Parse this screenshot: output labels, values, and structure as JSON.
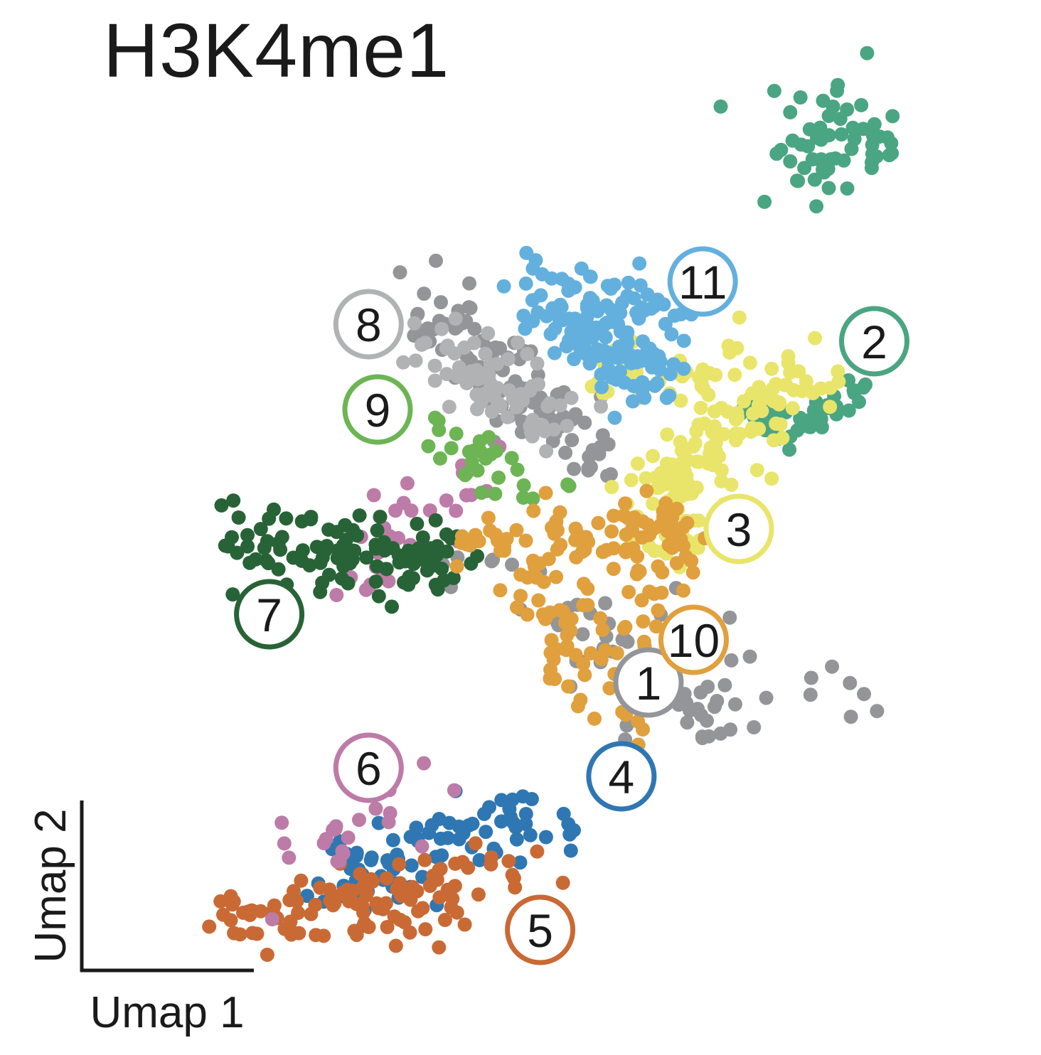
{
  "chart_data": {
    "type": "scatter",
    "title": "H3K4me1",
    "xlabel": "Umap 1",
    "ylabel": "Umap 2",
    "xlim": [
      0,
      100
    ],
    "ylim": [
      0,
      100
    ],
    "grid": false,
    "ticks": false,
    "series": [
      {
        "name": "1",
        "color": "#939598",
        "n": 170,
        "shape": [
          [
            34,
            80,
            55,
            60,
            15
          ],
          [
            71,
            30,
            52,
            40,
            5
          ],
          [
            84,
            33,
            35,
            50,
            4
          ]
        ],
        "label_at": [
          60,
          35
        ]
      },
      {
        "name": "2",
        "color": "#4aa582",
        "n": 120,
        "shape": [
          [
            70,
            67,
            114,
            73,
            35,
            95,
            4
          ],
          [
            80,
            98,
            6,
            5
          ]
        ],
        "label_at": [
          85,
          75
        ]
      },
      {
        "name": "3",
        "color": "#e8e56a",
        "n": 180,
        "shape": [
          [
            75,
            70,
            60,
            55,
            22
          ],
          [
            65,
            62,
            64,
            51,
            10
          ],
          [
            80,
            70,
            55,
            72,
            12
          ]
        ],
        "label_at": [
          70,
          53
        ]
      },
      {
        "name": "4",
        "color": "#2f77b2",
        "n": 90,
        "shape": [
          [
            46,
            20,
            25,
            10,
            10
          ],
          [
            52,
            18,
            26,
            12,
            5
          ]
        ],
        "label_at": [
          57,
          24
        ]
      },
      {
        "name": "5",
        "color": "#c96a35",
        "n": 110,
        "shape": [
          [
            38,
            10,
            14,
            7,
            12
          ],
          [
            47,
            14,
            18,
            6,
            7
          ]
        ],
        "label_at": [
          48,
          6
        ]
      },
      {
        "name": "6",
        "color": "#bd7ba7",
        "n": 55,
        "shape": [
          [
            40,
            58,
            25,
            45,
            20
          ],
          [
            37,
            22,
            17,
            12,
            10
          ]
        ],
        "label_at": [
          29,
          25
        ]
      },
      {
        "name": "7",
        "color": "#276336",
        "n": 110,
        "shape": [
          [
            15,
            52,
            39,
            49,
            15
          ]
        ],
        "label_at": [
          18,
          43
        ]
      },
      {
        "name": "8",
        "color": "#b0b2b3",
        "n": 70,
        "shape": [
          [
            35,
            75,
            50,
            64,
            15
          ]
        ],
        "label_at": [
          29,
          77
        ]
      },
      {
        "name": "9",
        "color": "#6db554",
        "n": 30,
        "shape": [
          [
            36,
            64,
            48,
            57,
            8
          ]
        ],
        "label_at": [
          30,
          67
        ]
      },
      {
        "name": "10",
        "color": "#e0a03d",
        "n": 170,
        "shape": [
          [
            40,
            51,
            64,
            52,
            25
          ],
          [
            46,
            48,
            58,
            28,
            20
          ],
          [
            62,
            52,
            58,
            35,
            10
          ]
        ],
        "label_at": [
          65,
          40
        ]
      },
      {
        "name": "11",
        "color": "#63b0de",
        "n": 150,
        "shape": [
          [
            50,
            78,
            62,
            70,
            12
          ],
          [
            46,
            82,
            65,
            78,
            10
          ]
        ],
        "label_at": [
          66,
          82
        ]
      }
    ]
  }
}
